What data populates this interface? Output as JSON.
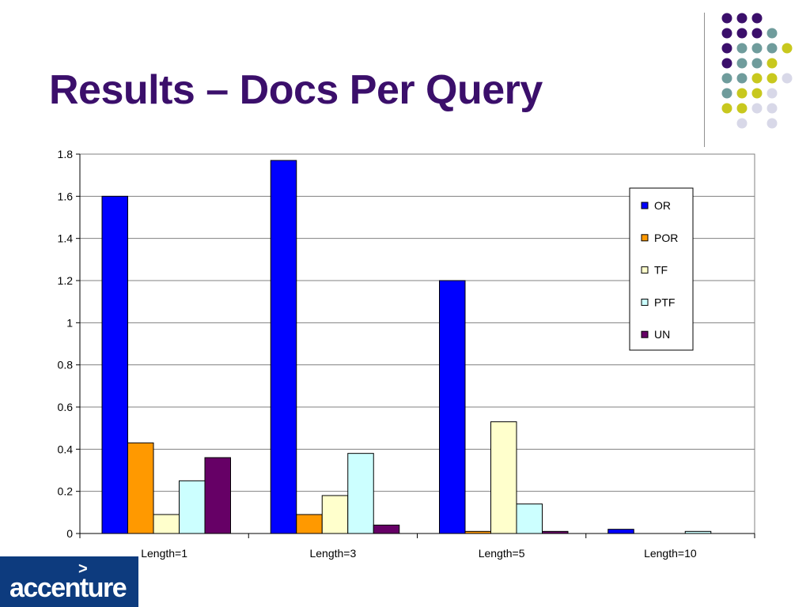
{
  "slide": {
    "title": "Results – Docs Per Query",
    "logo_text": "accenture",
    "logo_mark": ">"
  },
  "colors": {
    "title": "#3b0f6b",
    "dots": {
      "purple": "#3b0f6b",
      "teal": "#6f9c9c",
      "yellow": "#c8c81e",
      "lavender": "#d8d8e8"
    },
    "logo_bg": "#0d3b7e"
  },
  "chart_data": {
    "type": "bar",
    "title": "",
    "xlabel": "",
    "ylabel": "",
    "categories": [
      "Length=1",
      "Length=3",
      "Length=5",
      "Length=10"
    ],
    "ylim": [
      0,
      1.8
    ],
    "yticks": [
      "0",
      "0.2",
      "0.4",
      "0.6",
      "0.8",
      "1",
      "1.2",
      "1.4",
      "1.6",
      "1.8"
    ],
    "grid": true,
    "legend_position": "top-right",
    "series": [
      {
        "name": "OR",
        "color": "#0000ff",
        "values": [
          1.6,
          1.77,
          1.2,
          0.02
        ]
      },
      {
        "name": "POR",
        "color": "#ff9900",
        "values": [
          0.43,
          0.09,
          0.01,
          0.0
        ]
      },
      {
        "name": "TF",
        "color": "#ffffcc",
        "values": [
          0.09,
          0.18,
          0.53,
          0.0
        ]
      },
      {
        "name": "PTF",
        "color": "#ccffff",
        "values": [
          0.25,
          0.38,
          0.14,
          0.01
        ]
      },
      {
        "name": "UN",
        "color": "#660066",
        "values": [
          0.36,
          0.04,
          0.01,
          0.0
        ]
      }
    ]
  }
}
